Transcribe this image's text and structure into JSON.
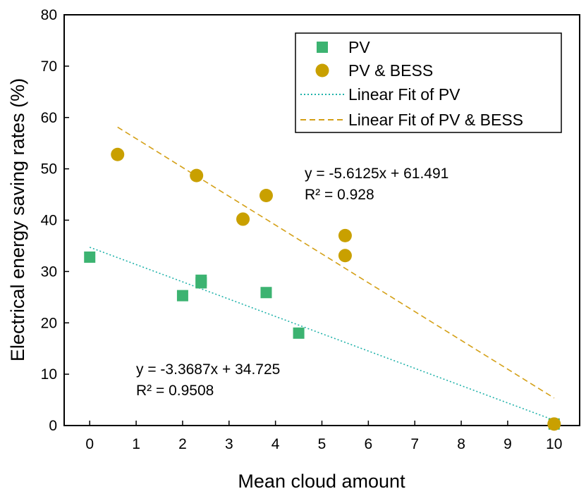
{
  "chart_data": {
    "type": "scatter",
    "title": "",
    "xlabel": "Mean cloud amount",
    "ylabel": "Electrical energy saving rates (%)",
    "xlim": [
      -0.55,
      10.55
    ],
    "ylim": [
      0,
      80
    ],
    "xticks": [
      0,
      1,
      2,
      3,
      4,
      5,
      6,
      7,
      8,
      9,
      10
    ],
    "yticks": [
      0,
      10,
      20,
      30,
      40,
      50,
      60,
      70,
      80
    ],
    "grid": false,
    "legend_position": "top-right",
    "series": [
      {
        "name": "PV",
        "marker": "square",
        "color": "#3cb371",
        "x": [
          0,
          2,
          2.4,
          2.4,
          3.8,
          4.5,
          10
        ],
        "y": [
          32.8,
          25.3,
          28.3,
          27.8,
          25.9,
          18.0,
          0.3
        ]
      },
      {
        "name": "PV & BESS",
        "marker": "circle",
        "color": "#c9a000",
        "x": [
          0.6,
          2.3,
          3.3,
          3.8,
          5.5,
          5.5,
          10
        ],
        "y": [
          52.8,
          48.7,
          40.2,
          44.8,
          37.0,
          33.1,
          0.3
        ]
      }
    ],
    "fits": [
      {
        "name": "Linear Fit of PV",
        "style": "dotted",
        "color": "#20b2aa",
        "slope": -3.3687,
        "intercept": 34.725,
        "x_range": [
          0,
          10
        ],
        "equation": "y = -3.3687x + 34.725",
        "r2": "R² = 0.9508"
      },
      {
        "name": "Linear Fit of PV & BESS",
        "style": "dashed",
        "color": "#d4a017",
        "slope": -5.6125,
        "intercept": 61.491,
        "x_range": [
          0.6,
          10
        ],
        "equation": "y = -5.6125x + 61.491",
        "r2": "R² = 0.928"
      }
    ]
  }
}
